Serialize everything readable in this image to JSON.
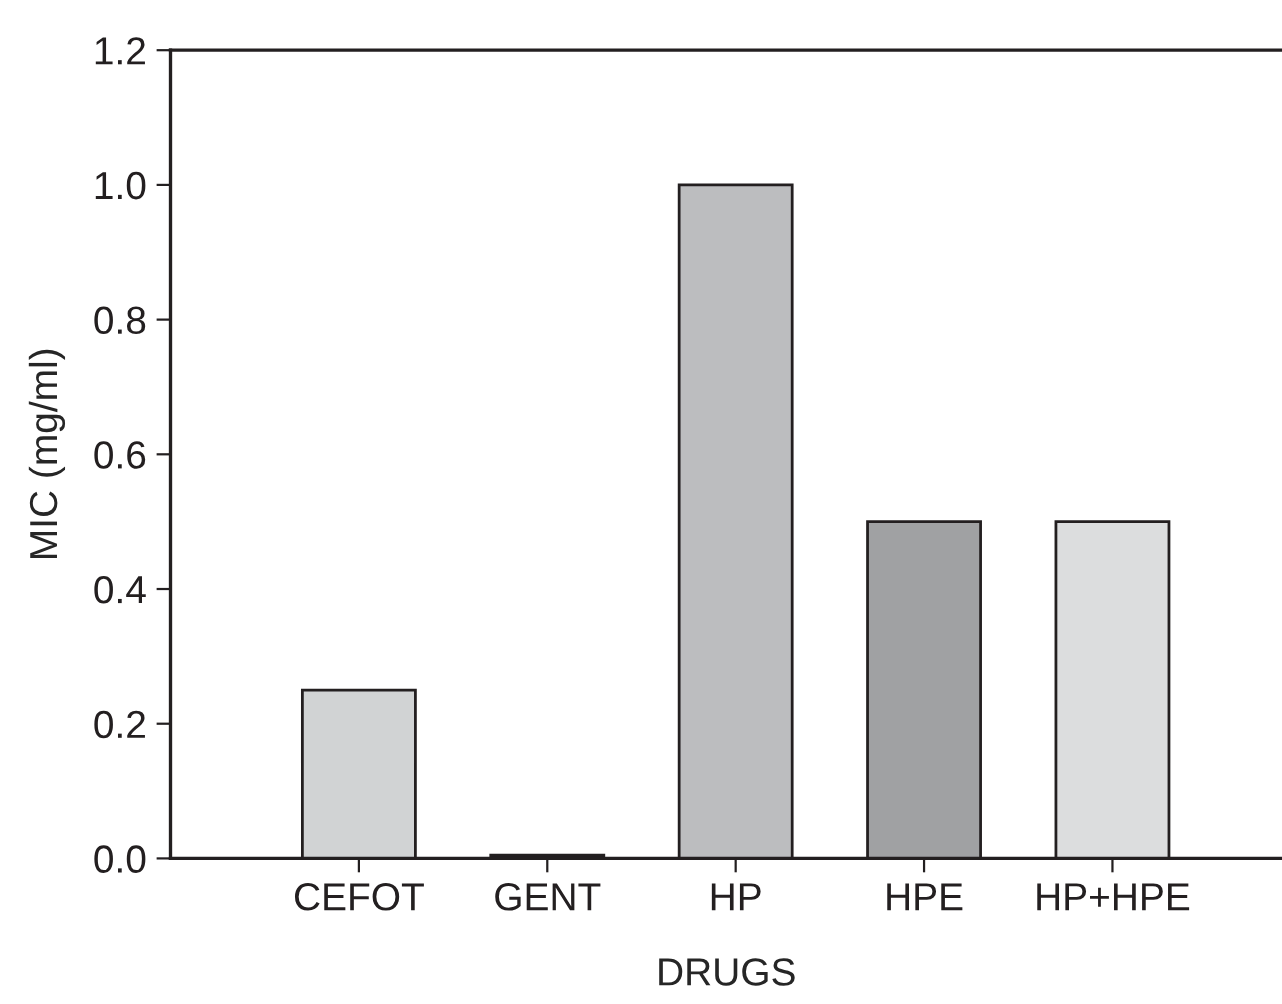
{
  "chart_data": {
    "type": "bar",
    "xlabel": "DRUGS",
    "ylabel": "MIC (mg/ml)",
    "categories": [
      "CEFOT",
      "GENT",
      "HP",
      "HPE",
      "HP+HPE"
    ],
    "values": [
      0.25,
      0.005,
      1.0,
      0.5,
      0.5
    ],
    "colors": [
      "#d1d3d4",
      "#231f20",
      "#bcbdbf",
      "#a0a1a3",
      "#dcddde"
    ],
    "ylim": [
      0,
      1.2
    ],
    "yticks": [
      {
        "value": 0,
        "label": "0.0"
      },
      0.2,
      0.4,
      0.6,
      0.8,
      {
        "value": 1,
        "label": "1.0"
      },
      1.2
    ],
    "grid": false,
    "legend": false
  }
}
